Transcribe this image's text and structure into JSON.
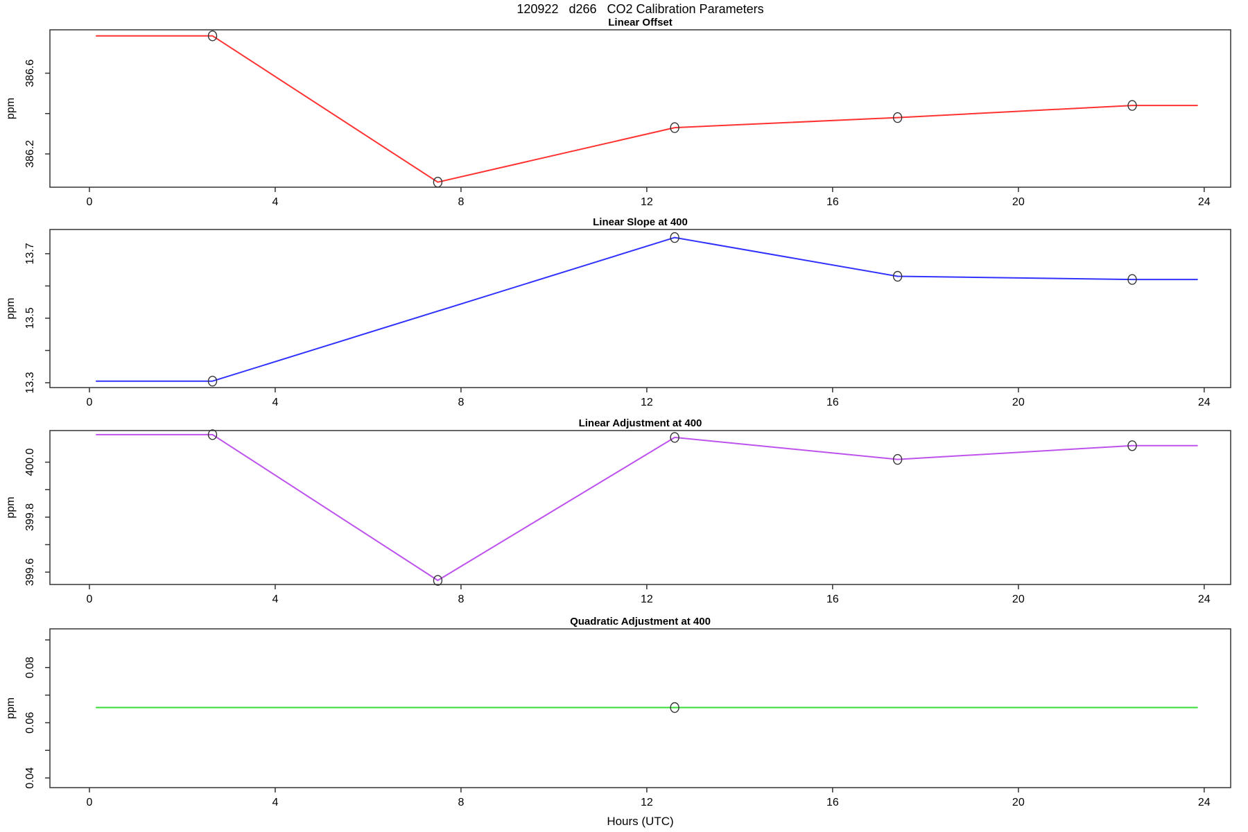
{
  "chart_data": {
    "type": "line",
    "title": "120922   d266   CO2 Calibration Parameters",
    "xlabel": "Hours (UTC)",
    "x_ticks": [
      0,
      4,
      8,
      12,
      16,
      20,
      24
    ],
    "xlim": [
      -0.85,
      24.57
    ],
    "grid": false,
    "legend": "none",
    "panels": [
      {
        "id": "linear-offset",
        "title": "Linear Offset",
        "ylabel": "ppm",
        "color": "#FF3232",
        "ylim": [
          386.035,
          386.815
        ],
        "yticks": [
          {
            "v": 386.2,
            "label": "386.2"
          },
          {
            "v": 386.4,
            "label": ""
          },
          {
            "v": 386.6,
            "label": "386.6"
          }
        ],
        "line": {
          "x": [
            0.15,
            2.65,
            7.5,
            12.6,
            17.4,
            22.45,
            23.85
          ],
          "y": [
            386.785,
            386.785,
            386.06,
            386.33,
            386.38,
            386.44,
            386.44
          ]
        },
        "markers": {
          "x": [
            2.65,
            7.5,
            12.6,
            17.4,
            22.45
          ],
          "y": [
            386.785,
            386.06,
            386.33,
            386.38,
            386.44
          ]
        }
      },
      {
        "id": "linear-slope-at-400",
        "title": "Linear Slope at 400",
        "ylabel": "ppm",
        "color": "#3232FF",
        "ylim": [
          13.285,
          13.775
        ],
        "yticks": [
          {
            "v": 13.3,
            "label": "13.3"
          },
          {
            "v": 13.4,
            "label": ""
          },
          {
            "v": 13.5,
            "label": "13.5"
          },
          {
            "v": 13.6,
            "label": ""
          },
          {
            "v": 13.7,
            "label": "13.7"
          }
        ],
        "line": {
          "x": [
            0.15,
            2.65,
            12.6,
            17.4,
            22.45,
            23.85
          ],
          "y": [
            13.305,
            13.305,
            13.75,
            13.63,
            13.62,
            13.62
          ]
        },
        "markers": {
          "x": [
            2.65,
            12.6,
            17.4,
            22.45
          ],
          "y": [
            13.305,
            13.75,
            13.63,
            13.62
          ]
        }
      },
      {
        "id": "linear-adjustment-at-400",
        "title": "Linear Adjustment at 400",
        "ylabel": "ppm",
        "color": "#BE52EC",
        "ylim": [
          399.555,
          400.115
        ],
        "yticks": [
          {
            "v": 399.6,
            "label": "399.6"
          },
          {
            "v": 399.7,
            "label": ""
          },
          {
            "v": 399.8,
            "label": "399.8"
          },
          {
            "v": 399.9,
            "label": ""
          },
          {
            "v": 400.0,
            "label": "400.0"
          }
        ],
        "line": {
          "x": [
            0.15,
            2.65,
            7.5,
            12.6,
            17.4,
            22.45,
            23.85
          ],
          "y": [
            400.1,
            400.1,
            399.57,
            400.09,
            400.01,
            400.06,
            400.06
          ]
        },
        "markers": {
          "x": [
            2.65,
            7.5,
            12.6,
            17.4,
            22.45
          ],
          "y": [
            400.1,
            399.57,
            400.09,
            400.01,
            400.06
          ]
        }
      },
      {
        "id": "quadratic-adjustment-at-400",
        "title": "Quadratic Adjustment at 400",
        "ylabel": "ppm",
        "color": "#33DD33",
        "ylim": [
          0.0365,
          0.094
        ],
        "yticks": [
          {
            "v": 0.04,
            "label": "0.04"
          },
          {
            "v": 0.05,
            "label": ""
          },
          {
            "v": 0.06,
            "label": "0.06"
          },
          {
            "v": 0.07,
            "label": ""
          },
          {
            "v": 0.08,
            "label": "0.08"
          },
          {
            "v": 0.09,
            "label": ""
          }
        ],
        "line": {
          "x": [
            0.15,
            12.6,
            23.85
          ],
          "y": [
            0.0655,
            0.0655,
            0.0655
          ]
        },
        "markers": {
          "x": [
            12.6
          ],
          "y": [
            0.0655
          ]
        }
      }
    ]
  }
}
